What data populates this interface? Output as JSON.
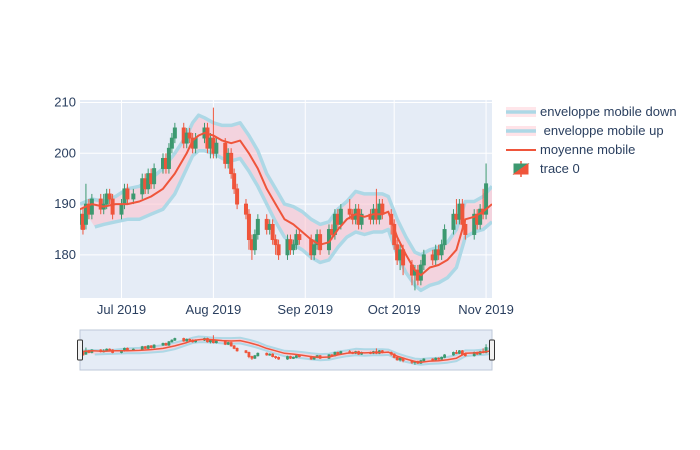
{
  "chart_data": {
    "type": "candlestick",
    "title": "",
    "xlabel": "",
    "ylabel": "",
    "x_range": [
      "2019-06-17",
      "2019-11-03"
    ],
    "ylim": [
      171.5,
      210.5
    ],
    "x_ticks": [
      {
        "date": "2019-07-01",
        "label": "Jul 2019"
      },
      {
        "date": "2019-08-01",
        "label": "Aug 2019"
      },
      {
        "date": "2019-09-01",
        "label": "Sep 2019"
      },
      {
        "date": "2019-10-01",
        "label": "Oct 2019"
      },
      {
        "date": "2019-11-01",
        "label": "Nov 2019"
      }
    ],
    "y_ticks": [
      180,
      190,
      200,
      210
    ],
    "grid": true,
    "legend_position": "top-right",
    "rangeslider": true,
    "series": [
      {
        "name": "enveloppe mobile down",
        "kind": "band-line",
        "color": "#add8e6"
      },
      {
        "name": " enveloppe mobile up",
        "kind": "band-line",
        "color": "#add8e6",
        "fill": "#ffc0cb"
      },
      {
        "name": "moyenne mobile",
        "kind": "line",
        "color": "#ef553b"
      },
      {
        "name": "trace 0",
        "kind": "candlestick",
        "increasing_color": "#3d9970",
        "decreasing_color": "#ef553b"
      }
    ],
    "ma": [
      [
        "2019-06-17",
        189
      ],
      [
        "2019-06-21",
        190
      ],
      [
        "2019-06-25",
        189.5
      ],
      [
        "2019-06-29",
        190
      ],
      [
        "2019-07-03",
        190
      ],
      [
        "2019-07-07",
        190.5
      ],
      [
        "2019-07-11",
        191.5
      ],
      [
        "2019-07-15",
        193
      ],
      [
        "2019-07-19",
        196
      ],
      [
        "2019-07-23",
        200
      ],
      [
        "2019-07-25",
        202.5
      ],
      [
        "2019-07-27",
        203.5
      ],
      [
        "2019-07-29",
        204
      ],
      [
        "2019-08-01",
        203.5
      ],
      [
        "2019-08-04",
        202.5
      ],
      [
        "2019-08-07",
        202
      ],
      [
        "2019-08-10",
        202.5
      ],
      [
        "2019-08-13",
        200
      ],
      [
        "2019-08-16",
        197
      ],
      [
        "2019-08-19",
        193
      ],
      [
        "2019-08-22",
        190
      ],
      [
        "2019-08-25",
        187
      ],
      [
        "2019-08-28",
        186
      ],
      [
        "2019-08-31",
        184.5
      ],
      [
        "2019-09-03",
        183
      ],
      [
        "2019-09-06",
        182
      ],
      [
        "2019-09-09",
        182.5
      ],
      [
        "2019-09-12",
        185
      ],
      [
        "2019-09-15",
        187
      ],
      [
        "2019-09-18",
        188
      ],
      [
        "2019-09-21",
        187.5
      ],
      [
        "2019-09-24",
        188
      ],
      [
        "2019-09-27",
        188
      ],
      [
        "2019-09-29",
        188.5
      ],
      [
        "2019-10-02",
        183.5
      ],
      [
        "2019-10-05",
        180
      ],
      [
        "2019-10-08",
        177
      ],
      [
        "2019-10-10",
        176
      ],
      [
        "2019-10-13",
        177.5
      ],
      [
        "2019-10-16",
        178
      ],
      [
        "2019-10-19",
        179
      ],
      [
        "2019-10-22",
        181
      ],
      [
        "2019-10-25",
        187
      ],
      [
        "2019-10-28",
        187.5
      ],
      [
        "2019-10-31",
        188.5
      ],
      [
        "2019-11-03",
        190
      ]
    ],
    "upper": [
      [
        "2019-06-17",
        190
      ],
      [
        "2019-06-21",
        191
      ],
      [
        "2019-06-25",
        190.5
      ],
      [
        "2019-06-29",
        191.5
      ],
      [
        "2019-07-03",
        193
      ],
      [
        "2019-07-07",
        193.5
      ],
      [
        "2019-07-11",
        195
      ],
      [
        "2019-07-15",
        197
      ],
      [
        "2019-07-19",
        200
      ],
      [
        "2019-07-23",
        203.5
      ],
      [
        "2019-07-25",
        206
      ],
      [
        "2019-07-27",
        207.5
      ],
      [
        "2019-07-29",
        207
      ],
      [
        "2019-08-01",
        206
      ],
      [
        "2019-08-04",
        205.5
      ],
      [
        "2019-08-07",
        205.5
      ],
      [
        "2019-08-10",
        206
      ],
      [
        "2019-08-13",
        203.5
      ],
      [
        "2019-08-16",
        200.5
      ],
      [
        "2019-08-19",
        196
      ],
      [
        "2019-08-22",
        193
      ],
      [
        "2019-08-25",
        190
      ],
      [
        "2019-08-28",
        189.5
      ],
      [
        "2019-08-31",
        188.5
      ],
      [
        "2019-09-03",
        187
      ],
      [
        "2019-09-06",
        186
      ],
      [
        "2019-09-09",
        186.5
      ],
      [
        "2019-09-12",
        189
      ],
      [
        "2019-09-15",
        190.5
      ],
      [
        "2019-09-18",
        192.5
      ],
      [
        "2019-09-21",
        192
      ],
      [
        "2019-09-24",
        192
      ],
      [
        "2019-09-27",
        192
      ],
      [
        "2019-09-29",
        191.5
      ],
      [
        "2019-10-02",
        187
      ],
      [
        "2019-10-05",
        183.5
      ],
      [
        "2019-10-08",
        180.5
      ],
      [
        "2019-10-10",
        180
      ],
      [
        "2019-10-13",
        181
      ],
      [
        "2019-10-16",
        181.5
      ],
      [
        "2019-10-19",
        182.5
      ],
      [
        "2019-10-22",
        185
      ],
      [
        "2019-10-25",
        190.5
      ],
      [
        "2019-10-28",
        190.5
      ],
      [
        "2019-10-31",
        191.5
      ],
      [
        "2019-11-03",
        193.5
      ]
    ],
    "lower": [
      [
        "2019-06-22",
        185.5
      ],
      [
        "2019-06-25",
        186
      ],
      [
        "2019-06-29",
        186.5
      ],
      [
        "2019-07-03",
        187
      ],
      [
        "2019-07-07",
        187
      ],
      [
        "2019-07-11",
        188
      ],
      [
        "2019-07-15",
        189
      ],
      [
        "2019-07-19",
        192
      ],
      [
        "2019-07-23",
        197
      ],
      [
        "2019-07-25",
        199.5
      ],
      [
        "2019-07-27",
        200.5
      ],
      [
        "2019-07-29",
        200.5
      ],
      [
        "2019-08-01",
        200
      ],
      [
        "2019-08-04",
        199
      ],
      [
        "2019-08-07",
        198.5
      ],
      [
        "2019-08-10",
        199
      ],
      [
        "2019-08-13",
        196.5
      ],
      [
        "2019-08-16",
        193.5
      ],
      [
        "2019-08-19",
        190
      ],
      [
        "2019-08-22",
        186.5
      ],
      [
        "2019-08-25",
        183.5
      ],
      [
        "2019-08-28",
        182
      ],
      [
        "2019-08-31",
        181
      ],
      [
        "2019-09-03",
        179.5
      ],
      [
        "2019-09-06",
        178.5
      ],
      [
        "2019-09-09",
        179
      ],
      [
        "2019-09-12",
        181.5
      ],
      [
        "2019-09-15",
        183.5
      ],
      [
        "2019-09-18",
        184.5
      ],
      [
        "2019-09-21",
        184
      ],
      [
        "2019-09-24",
        184.5
      ],
      [
        "2019-09-27",
        184.5
      ],
      [
        "2019-09-29",
        185
      ],
      [
        "2019-10-02",
        180
      ],
      [
        "2019-10-05",
        176.5
      ],
      [
        "2019-10-08",
        174
      ],
      [
        "2019-10-10",
        173
      ],
      [
        "2019-10-13",
        174
      ],
      [
        "2019-10-16",
        174.5
      ],
      [
        "2019-10-19",
        175.5
      ],
      [
        "2019-10-22",
        177.5
      ],
      [
        "2019-10-25",
        183.5
      ],
      [
        "2019-10-28",
        184.5
      ],
      [
        "2019-10-31",
        185
      ],
      [
        "2019-11-03",
        186.5
      ]
    ],
    "candles": [
      [
        "2019-06-17",
        186,
        188,
        189,
        185
      ],
      [
        "2019-06-18",
        188,
        185,
        189,
        184
      ],
      [
        "2019-06-19",
        186,
        190,
        194,
        185
      ],
      [
        "2019-06-20",
        190,
        188,
        191,
        187
      ],
      [
        "2019-06-21",
        188,
        191,
        192,
        187
      ],
      [
        "2019-06-24",
        191,
        189,
        192,
        188
      ],
      [
        "2019-06-25",
        189,
        190,
        192,
        188
      ],
      [
        "2019-06-26",
        190,
        192,
        193,
        189
      ],
      [
        "2019-06-27",
        192,
        191,
        193,
        190
      ],
      [
        "2019-06-28",
        191,
        188,
        192,
        187
      ],
      [
        "2019-07-01",
        188,
        190,
        191,
        187
      ],
      [
        "2019-07-02",
        190,
        193,
        194,
        189
      ],
      [
        "2019-07-03",
        193,
        191,
        194,
        190
      ],
      [
        "2019-07-05",
        191,
        192,
        193,
        190
      ],
      [
        "2019-07-08",
        192,
        195,
        196,
        191
      ],
      [
        "2019-07-09",
        195,
        193,
        196,
        192
      ],
      [
        "2019-07-10",
        193,
        196,
        197,
        192
      ],
      [
        "2019-07-11",
        196,
        194,
        197,
        193
      ],
      [
        "2019-07-12",
        194,
        197,
        198,
        193
      ],
      [
        "2019-07-15",
        197,
        199,
        200,
        196
      ],
      [
        "2019-07-16",
        199,
        197,
        200,
        196
      ],
      [
        "2019-07-17",
        197,
        201,
        202,
        196
      ],
      [
        "2019-07-18",
        201,
        203,
        204,
        200
      ],
      [
        "2019-07-19",
        203,
        205,
        206,
        202
      ],
      [
        "2019-07-22",
        205,
        202,
        206,
        201
      ],
      [
        "2019-07-23",
        202,
        204,
        205,
        201
      ],
      [
        "2019-07-24",
        204,
        203,
        205,
        202
      ],
      [
        "2019-07-25",
        203,
        201,
        204,
        200
      ],
      [
        "2019-07-26",
        201,
        203,
        204,
        200
      ],
      [
        "2019-07-29",
        203,
        205,
        206,
        202
      ],
      [
        "2019-07-30",
        205,
        201,
        206,
        200
      ],
      [
        "2019-07-31",
        201,
        203,
        204,
        199
      ],
      [
        "2019-08-01",
        203,
        200,
        209,
        199
      ],
      [
        "2019-08-02",
        200,
        202,
        203,
        199
      ],
      [
        "2019-08-05",
        202,
        198,
        203,
        197
      ],
      [
        "2019-08-06",
        198,
        200,
        201,
        197
      ],
      [
        "2019-08-07",
        200,
        196,
        201,
        195
      ],
      [
        "2019-08-08",
        196,
        193,
        197,
        192
      ],
      [
        "2019-08-09",
        193,
        190,
        194,
        189
      ],
      [
        "2019-08-12",
        190,
        188,
        191,
        187
      ],
      [
        "2019-08-13",
        188,
        183,
        189,
        181
      ],
      [
        "2019-08-14",
        183,
        181,
        184,
        179
      ],
      [
        "2019-08-15",
        181,
        184,
        185,
        180
      ],
      [
        "2019-08-16",
        184,
        187,
        188,
        183
      ],
      [
        "2019-08-19",
        187,
        185,
        188,
        184
      ],
      [
        "2019-08-20",
        185,
        186,
        187,
        184
      ],
      [
        "2019-08-21",
        186,
        183,
        187,
        182
      ],
      [
        "2019-08-22",
        183,
        182,
        184,
        180
      ],
      [
        "2019-08-23",
        182,
        180,
        183,
        179
      ],
      [
        "2019-08-26",
        180,
        183,
        184,
        179
      ],
      [
        "2019-08-27",
        183,
        181,
        184,
        180
      ],
      [
        "2019-08-28",
        181,
        182,
        183,
        180
      ],
      [
        "2019-08-29",
        182,
        184,
        185,
        181
      ],
      [
        "2019-08-30",
        184,
        183,
        185,
        182
      ],
      [
        "2019-09-03",
        183,
        180,
        184,
        179
      ],
      [
        "2019-09-04",
        180,
        182,
        183,
        179
      ],
      [
        "2019-09-05",
        182,
        184,
        185,
        181
      ],
      [
        "2019-09-06",
        184,
        181,
        185,
        180
      ],
      [
        "2019-09-09",
        181,
        185,
        186,
        180
      ],
      [
        "2019-09-10",
        185,
        184,
        186,
        183
      ],
      [
        "2019-09-11",
        184,
        188,
        189,
        183
      ],
      [
        "2019-09-12",
        188,
        186,
        189,
        185
      ],
      [
        "2019-09-13",
        186,
        189,
        190,
        185
      ],
      [
        "2019-09-16",
        189,
        188,
        191,
        187
      ],
      [
        "2019-09-17",
        188,
        187,
        189,
        186
      ],
      [
        "2019-09-18",
        187,
        189,
        190,
        186
      ],
      [
        "2019-09-19",
        189,
        186,
        190,
        185
      ],
      [
        "2019-09-20",
        186,
        188,
        189,
        185
      ],
      [
        "2019-09-23",
        188,
        187,
        189,
        186
      ],
      [
        "2019-09-24",
        187,
        189,
        190,
        186
      ],
      [
        "2019-09-25",
        189,
        187,
        193,
        186
      ],
      [
        "2019-09-26",
        187,
        190,
        191,
        186
      ],
      [
        "2019-09-27",
        190,
        188,
        191,
        187
      ],
      [
        "2019-09-30",
        188,
        186,
        189,
        184
      ],
      [
        "2019-10-01",
        186,
        182,
        187,
        181
      ],
      [
        "2019-10-02",
        182,
        179,
        183,
        178
      ],
      [
        "2019-10-03",
        179,
        181,
        182,
        177
      ],
      [
        "2019-10-04",
        181,
        178,
        182,
        176
      ],
      [
        "2019-10-07",
        178,
        176,
        179,
        174
      ],
      [
        "2019-10-08",
        176,
        177,
        178,
        173
      ],
      [
        "2019-10-09",
        177,
        175,
        178,
        174
      ],
      [
        "2019-10-10",
        175,
        178,
        179,
        174
      ],
      [
        "2019-10-11",
        178,
        180,
        181,
        177
      ],
      [
        "2019-10-14",
        180,
        179,
        181,
        178
      ],
      [
        "2019-10-15",
        179,
        181,
        182,
        178
      ],
      [
        "2019-10-16",
        181,
        180,
        182,
        179
      ],
      [
        "2019-10-17",
        180,
        182,
        183,
        179
      ],
      [
        "2019-10-18",
        182,
        185,
        186,
        181
      ],
      [
        "2019-10-21",
        185,
        188,
        189,
        184
      ],
      [
        "2019-10-22",
        188,
        187,
        191,
        186
      ],
      [
        "2019-10-23",
        187,
        190,
        191,
        186
      ],
      [
        "2019-10-24",
        190,
        186,
        191,
        185
      ],
      [
        "2019-10-25",
        186,
        184,
        187,
        183
      ],
      [
        "2019-10-28",
        184,
        188,
        189,
        183
      ],
      [
        "2019-10-29",
        188,
        186,
        189,
        185
      ],
      [
        "2019-10-30",
        186,
        189,
        190,
        185
      ],
      [
        "2019-10-31",
        189,
        188,
        193,
        187
      ],
      [
        "2019-11-01",
        188,
        194,
        198,
        187
      ]
    ]
  }
}
